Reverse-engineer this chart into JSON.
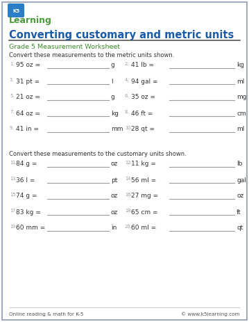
{
  "title": "Converting customary and metric units",
  "subtitle": "Grade 5 Measurement Worksheet",
  "title_color": "#1a5ba6",
  "subtitle_color": "#3a8a2a",
  "bg_color": "#ffffff",
  "border_color": "#a0aabb",
  "section1_intro": "Convert these measurements to the metric units shown.",
  "section2_intro": "Convert these measurements to the customary units shown.",
  "problems_section1": [
    [
      "1.",
      "95 oz =",
      "g",
      "2.",
      "41 lb =",
      "kg"
    ],
    [
      "3.",
      "31 pt =",
      "l",
      "4.",
      "94 gal =",
      "ml"
    ],
    [
      "5.",
      "21 oz =",
      "g",
      "6.",
      "35 oz =",
      "mg"
    ],
    [
      "7.",
      "64 oz =",
      "kg",
      "8.",
      "46 ft =",
      "cm"
    ],
    [
      "9.",
      "41 in =",
      "mm",
      "10.",
      "28 qt =",
      "ml"
    ]
  ],
  "problems_section2": [
    [
      "11.",
      "84 g =",
      "oz",
      "12.",
      "11 kg =",
      "lb"
    ],
    [
      "13.",
      "36 l =",
      "pt",
      "14.",
      "56 ml =",
      "gal"
    ],
    [
      "15.",
      "74 g =",
      "oz",
      "16.",
      "27 mg =",
      "oz"
    ],
    [
      "17.",
      "83 kg =",
      "oz",
      "18.",
      "65 cm =",
      "ft"
    ],
    [
      "19.",
      "60 mm =",
      "in",
      "20.",
      "60 ml =",
      "qt"
    ]
  ],
  "footer_left": "Online reading & math for K-5",
  "footer_right": "© www.k5learning.com",
  "text_color": "#333333",
  "line_color": "#999999",
  "num_color": "#999999"
}
